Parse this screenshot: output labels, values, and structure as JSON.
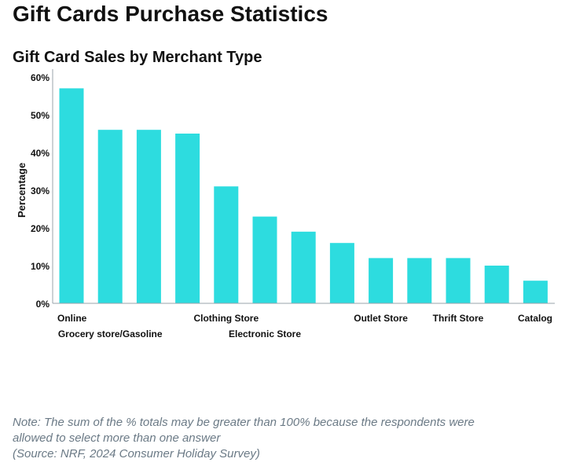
{
  "header": {
    "title": "Gift Cards Purchase Statistics"
  },
  "chart_data": {
    "type": "bar",
    "title": "Gift Card Sales by Merchant Type",
    "xlabel": "",
    "ylabel": "Percentage",
    "ylim": [
      0,
      60
    ],
    "yticks": [
      "0%",
      "10%",
      "20%",
      "30%",
      "40%",
      "50%",
      "60%"
    ],
    "categories": [
      "Online",
      "Grocery store/Gasoline",
      "",
      "",
      "Clothing Store",
      "Electronic Store",
      "",
      "",
      "Outlet Store",
      "",
      "Thrift Store",
      "",
      "Catalog"
    ],
    "values": [
      57,
      46,
      46,
      45,
      31,
      23,
      19,
      16,
      12,
      12,
      12,
      10,
      6
    ],
    "bar_color": "#2ddcdf",
    "grid": false,
    "legend": "none"
  },
  "footer": {
    "note_line1": "Note: The sum of the % totals may be greater than 100% because the respondents were",
    "note_line2": "allowed to select more than one answer",
    "source": "(Source: NRF, 2024 Consumer Holiday Survey)"
  }
}
